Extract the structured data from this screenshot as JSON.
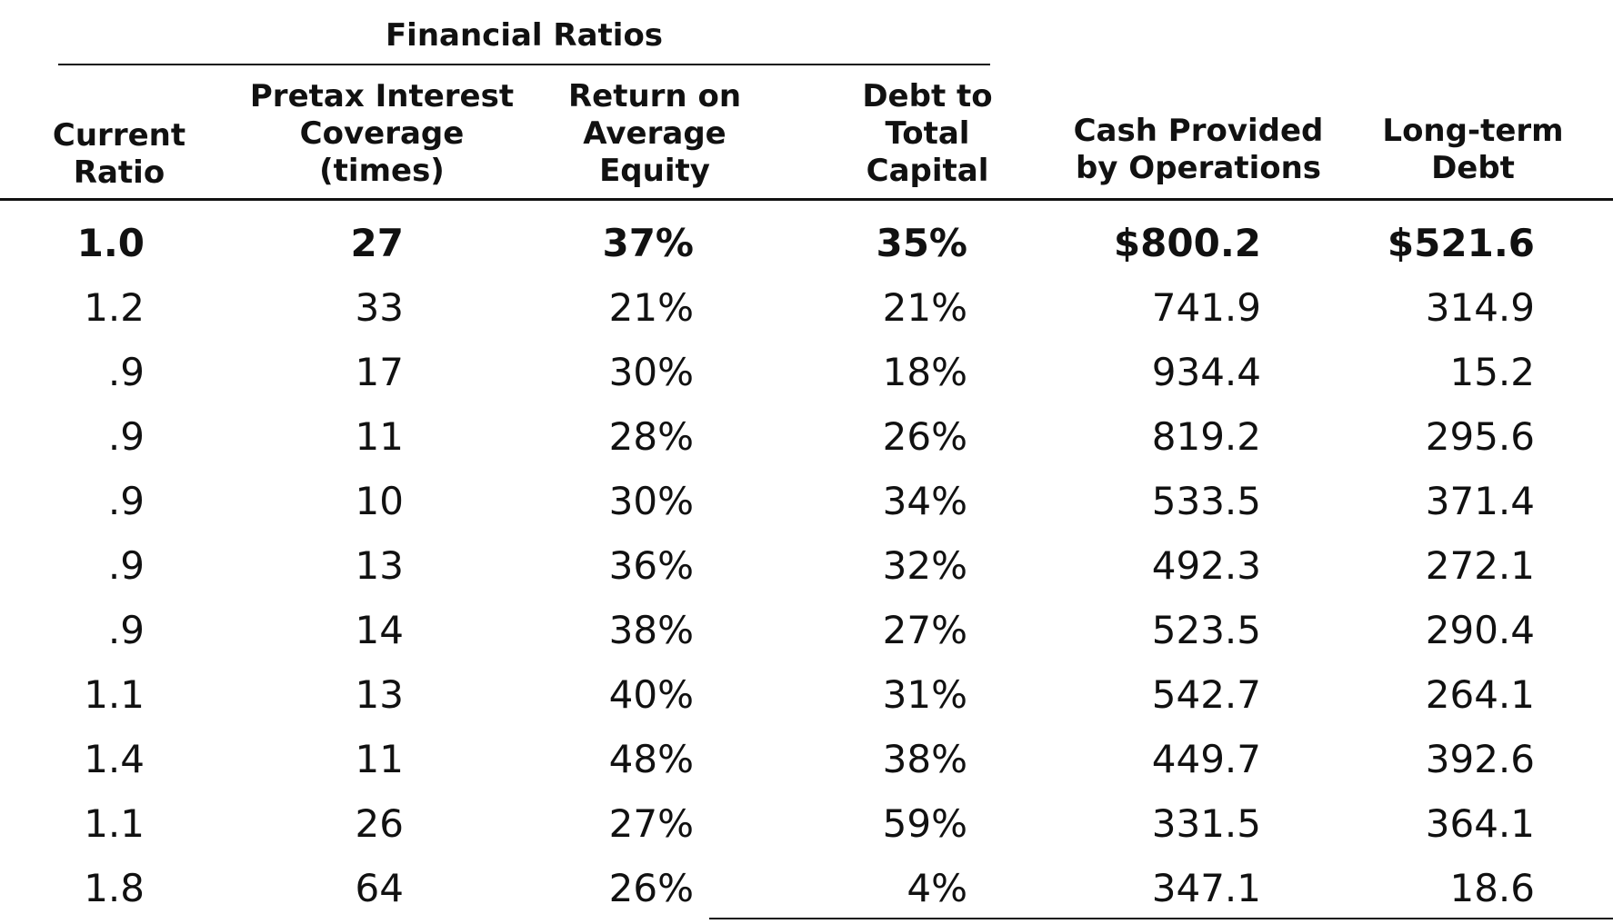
{
  "table": {
    "group_title": "Financial Ratios",
    "headers": [
      [
        "Current",
        "Ratio"
      ],
      [
        "Pretax Interest",
        "Coverage",
        "(times)"
      ],
      [
        "Return on",
        "Average",
        "Equity"
      ],
      [
        "Debt to",
        "Total",
        "Capital"
      ],
      [
        "Cash Provided",
        "by Operations"
      ],
      [
        "Long-term",
        "Debt"
      ]
    ],
    "rows": [
      [
        "1.0",
        "27",
        "37%",
        "35%",
        "$800.2",
        "$521.6"
      ],
      [
        "1.2",
        "33",
        "21%",
        "21%",
        "741.9",
        "314.9"
      ],
      [
        ".9",
        "17",
        "30%",
        "18%",
        "934.4",
        "15.2"
      ],
      [
        ".9",
        "11",
        "28%",
        "26%",
        "819.2",
        "295.6"
      ],
      [
        ".9",
        "10",
        "30%",
        "34%",
        "533.5",
        "371.4"
      ],
      [
        ".9",
        "13",
        "36%",
        "32%",
        "492.3",
        "272.1"
      ],
      [
        ".9",
        "14",
        "38%",
        "27%",
        "523.5",
        "290.4"
      ],
      [
        "1.1",
        "13",
        "40%",
        "31%",
        "542.7",
        "264.1"
      ],
      [
        "1.4",
        "11",
        "48%",
        "38%",
        "449.7",
        "392.6"
      ],
      [
        "1.1",
        "26",
        "27%",
        "59%",
        "331.5",
        "364.1"
      ],
      [
        "1.8",
        "64",
        "26%",
        "4%",
        "347.1",
        "18.6"
      ]
    ]
  }
}
